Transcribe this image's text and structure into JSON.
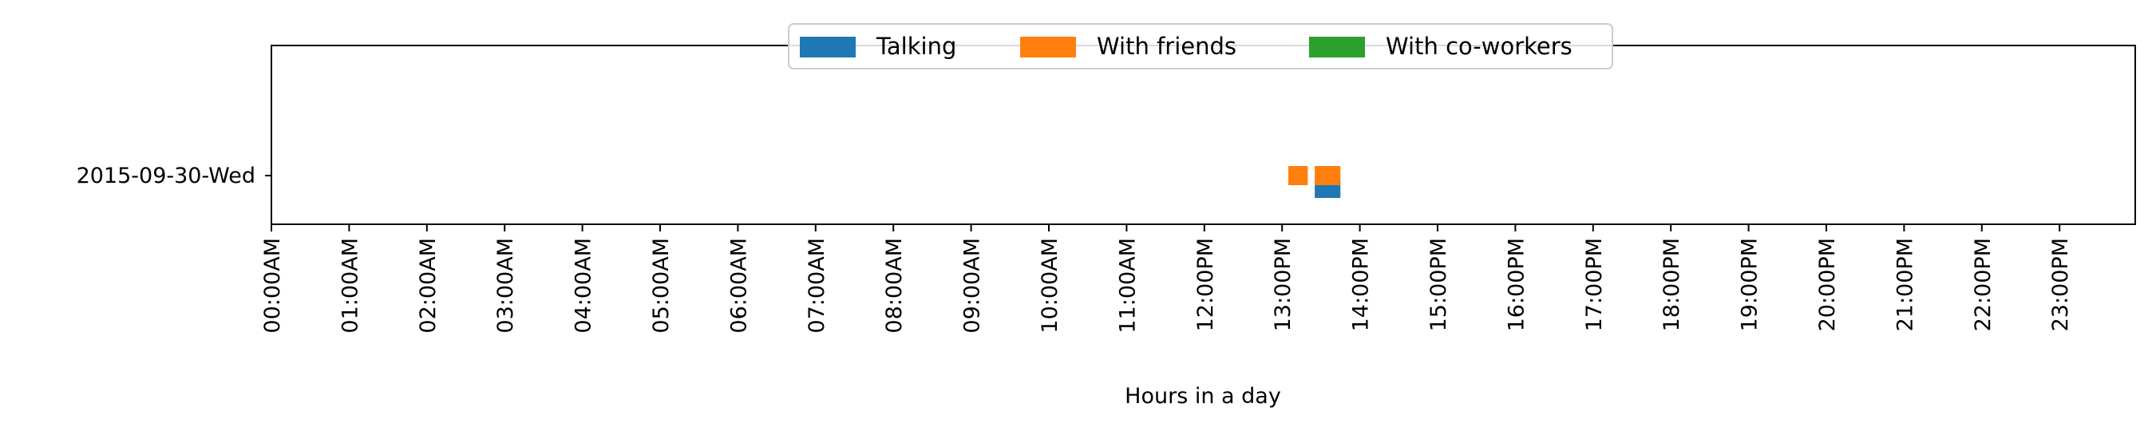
{
  "chart_data": {
    "type": "timeline",
    "xlabel": "Hours in a day",
    "ylabel": "",
    "x_ticks": [
      "00:00AM",
      "01:00AM",
      "02:00AM",
      "03:00AM",
      "04:00AM",
      "05:00AM",
      "06:00AM",
      "07:00AM",
      "08:00AM",
      "09:00AM",
      "10:00AM",
      "11:00AM",
      "12:00PM",
      "13:00PM",
      "14:00PM",
      "15:00PM",
      "16:00PM",
      "17:00PM",
      "18:00PM",
      "19:00PM",
      "20:00PM",
      "21:00PM",
      "22:00PM",
      "23:00PM"
    ],
    "xlim": [
      0,
      24
    ],
    "y_categories": [
      "2015-09-30-Wed"
    ],
    "grid": false,
    "legend_placement": "top-center",
    "series": [
      {
        "name": "Talking",
        "color": "#1f77b4",
        "intervals": [
          {
            "day": "2015-09-30-Wed",
            "start": 13.42,
            "end": 13.75
          }
        ]
      },
      {
        "name": "With friends",
        "color": "#ff7f0e",
        "intervals": [
          {
            "day": "2015-09-30-Wed",
            "start": 13.08,
            "end": 13.33
          },
          {
            "day": "2015-09-30-Wed",
            "start": 13.42,
            "end": 13.75
          }
        ]
      },
      {
        "name": "With co-workers",
        "color": "#2ca02c",
        "intervals": []
      }
    ]
  }
}
